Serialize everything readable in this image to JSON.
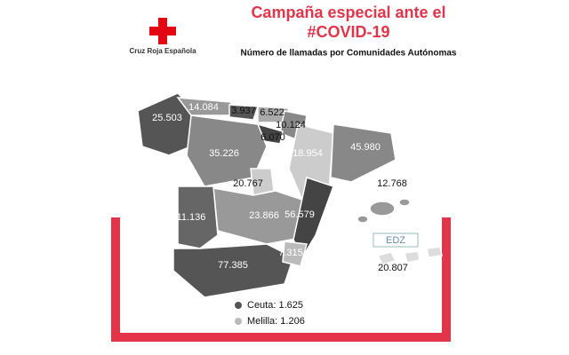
{
  "logo": {
    "text": "Cruz Roja Española"
  },
  "header": {
    "title_lines": [
      "Campaña especial ante el",
      "#COVID-19"
    ],
    "subtitle": "Número de llamadas por Comunidades Autónomas"
  },
  "map": {
    "region_labels": [
      "25.503",
      "14.084",
      "3.937",
      "6.522",
      "10.124",
      "6.070",
      "35.226",
      "18.954",
      "45.980",
      "20.767",
      "23.866",
      "56.579",
      "11.136",
      "77.385",
      "7.315",
      "12.768",
      "20.807"
    ],
    "watermark": "EDZ",
    "legend": [
      "Ceuta: 1.625",
      "Melilla: 1.206"
    ]
  }
}
